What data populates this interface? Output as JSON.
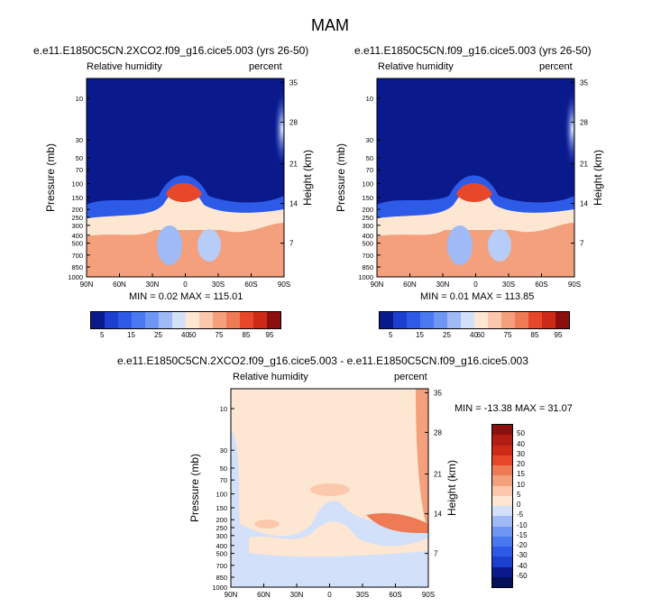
{
  "figure": {
    "title": "MAM",
    "colors": {
      "frame": "#000000",
      "deep_blue": "#0a1a8c",
      "cream": "#fde7d3"
    }
  },
  "chart_data": [
    {
      "type": "heatmap",
      "title": "e.e11.E1850C5CN.2XCO2.f09_g16.cice5.003 (yrs 26-50)",
      "left_string": "Relative humidity",
      "right_string": "percent",
      "xlabel": "",
      "ylabel": "Pressure (mb)",
      "y2label": "Height (km)",
      "x_ticks": [
        "90N",
        "60N",
        "30N",
        "0",
        "30S",
        "60S",
        "90S"
      ],
      "y_ticks": [
        "10",
        "30",
        "50",
        "70",
        "100",
        "150",
        "200",
        "250",
        "300",
        "400",
        "500",
        "700",
        "850",
        "1000"
      ],
      "y2_ticks": [
        "35",
        "28",
        "21",
        "14",
        "7"
      ],
      "stats": "MIN =  0.02  MAX = 115.01",
      "colorbar_labels": [
        "5",
        "15",
        "25",
        "40",
        "60",
        "75",
        "85",
        "95"
      ]
    },
    {
      "type": "heatmap",
      "title": "e.e11.E1850C5CN.f09_g16.cice5.003 (yrs 26-50)",
      "left_string": "Relative humidity",
      "right_string": "percent",
      "xlabel": "",
      "ylabel": "Pressure (mb)",
      "y2label": "Height (km)",
      "x_ticks": [
        "90N",
        "60N",
        "30N",
        "0",
        "30S",
        "60S",
        "90S"
      ],
      "y_ticks": [
        "10",
        "30",
        "50",
        "70",
        "100",
        "150",
        "200",
        "250",
        "300",
        "400",
        "500",
        "700",
        "850",
        "1000"
      ],
      "y2_ticks": [
        "35",
        "28",
        "21",
        "14",
        "7"
      ],
      "stats": "MIN =  0.01  MAX = 113.85",
      "colorbar_labels": [
        "5",
        "15",
        "25",
        "40",
        "60",
        "75",
        "85",
        "95"
      ]
    },
    {
      "type": "heatmap",
      "title": "e.e11.E1850C5CN.2XCO2.f09_g16.cice5.003 - e.e11.E1850C5CN.f09_g16.cice5.003",
      "left_string": "Relative humidity",
      "right_string": "percent",
      "xlabel": "",
      "ylabel": "Pressure (mb)",
      "y2label": "Height (km)",
      "x_ticks": [
        "90N",
        "60N",
        "30N",
        "0",
        "30S",
        "60S",
        "90S"
      ],
      "y_ticks": [
        "10",
        "30",
        "50",
        "70",
        "100",
        "150",
        "200",
        "250",
        "300",
        "400",
        "500",
        "700",
        "850",
        "1000"
      ],
      "y2_ticks": [
        "35",
        "28",
        "21",
        "14",
        "7"
      ],
      "stats": "MIN = -13.38  MAX =  31.07",
      "colorbar_labels": [
        "50",
        "40",
        "30",
        "20",
        "15",
        "10",
        "5",
        "0",
        "-5",
        "-10",
        "-15",
        "-20",
        "-30",
        "-40",
        "-50"
      ]
    }
  ]
}
